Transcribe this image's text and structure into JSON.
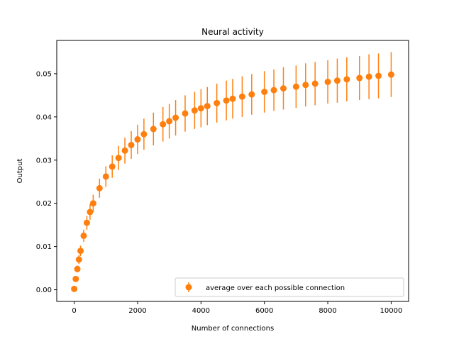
{
  "chart_data": {
    "type": "scatter",
    "title": "Neural activity",
    "xlabel": "Number of connections",
    "ylabel": "Output",
    "xlim": [
      -550,
      10550
    ],
    "ylim": [
      -0.0027,
      0.0577
    ],
    "x_ticks": [
      0,
      2000,
      4000,
      6000,
      8000,
      10000
    ],
    "y_ticks": [
      0.0,
      0.01,
      0.02,
      0.03,
      0.04,
      0.05
    ],
    "x_tick_labels": [
      "0",
      "2000",
      "4000",
      "6000",
      "8000",
      "10000"
    ],
    "y_tick_labels": [
      "0.00",
      "0.01",
      "0.02",
      "0.03",
      "0.04",
      "0.05"
    ],
    "grid": false,
    "legend_position": "lower-right",
    "series": [
      {
        "name": "average over each possible connection",
        "color": "#ff7f0e",
        "marker": "circle-errorbar",
        "x": [
          0,
          50,
          100,
          150,
          200,
          300,
          400,
          500,
          600,
          800,
          1000,
          1200,
          1400,
          1600,
          1800,
          2000,
          2200,
          2500,
          2800,
          3000,
          3200,
          3500,
          3800,
          4000,
          4200,
          4500,
          4800,
          5000,
          5300,
          5600,
          6000,
          6300,
          6600,
          7000,
          7300,
          7600,
          8000,
          8300,
          8600,
          9000,
          9300,
          9600,
          10000
        ],
        "y": [
          0.0002,
          0.0025,
          0.0048,
          0.007,
          0.009,
          0.0125,
          0.0155,
          0.018,
          0.02,
          0.0235,
          0.0262,
          0.0285,
          0.0305,
          0.0322,
          0.0335,
          0.0348,
          0.036,
          0.0372,
          0.0383,
          0.039,
          0.0398,
          0.0408,
          0.0415,
          0.042,
          0.0425,
          0.0432,
          0.0438,
          0.0442,
          0.0447,
          0.0452,
          0.0458,
          0.0462,
          0.0466,
          0.047,
          0.0474,
          0.0477,
          0.0481,
          0.0484,
          0.0487,
          0.049,
          0.0493,
          0.0495,
          0.0498
        ],
        "spread": [
          0.0004,
          0.0006,
          0.0008,
          0.001,
          0.0012,
          0.0014,
          0.0016,
          0.0018,
          0.002,
          0.0022,
          0.0024,
          0.0026,
          0.0028,
          0.003,
          0.0032,
          0.0034,
          0.0036,
          0.0038,
          0.004,
          0.004,
          0.0041,
          0.0042,
          0.0043,
          0.0044,
          0.0044,
          0.0045,
          0.0046,
          0.0046,
          0.0047,
          0.0047,
          0.0048,
          0.0048,
          0.0049,
          0.0049,
          0.005,
          0.005,
          0.005,
          0.0051,
          0.0051,
          0.0051,
          0.0052,
          0.0052,
          0.0052
        ]
      }
    ]
  }
}
